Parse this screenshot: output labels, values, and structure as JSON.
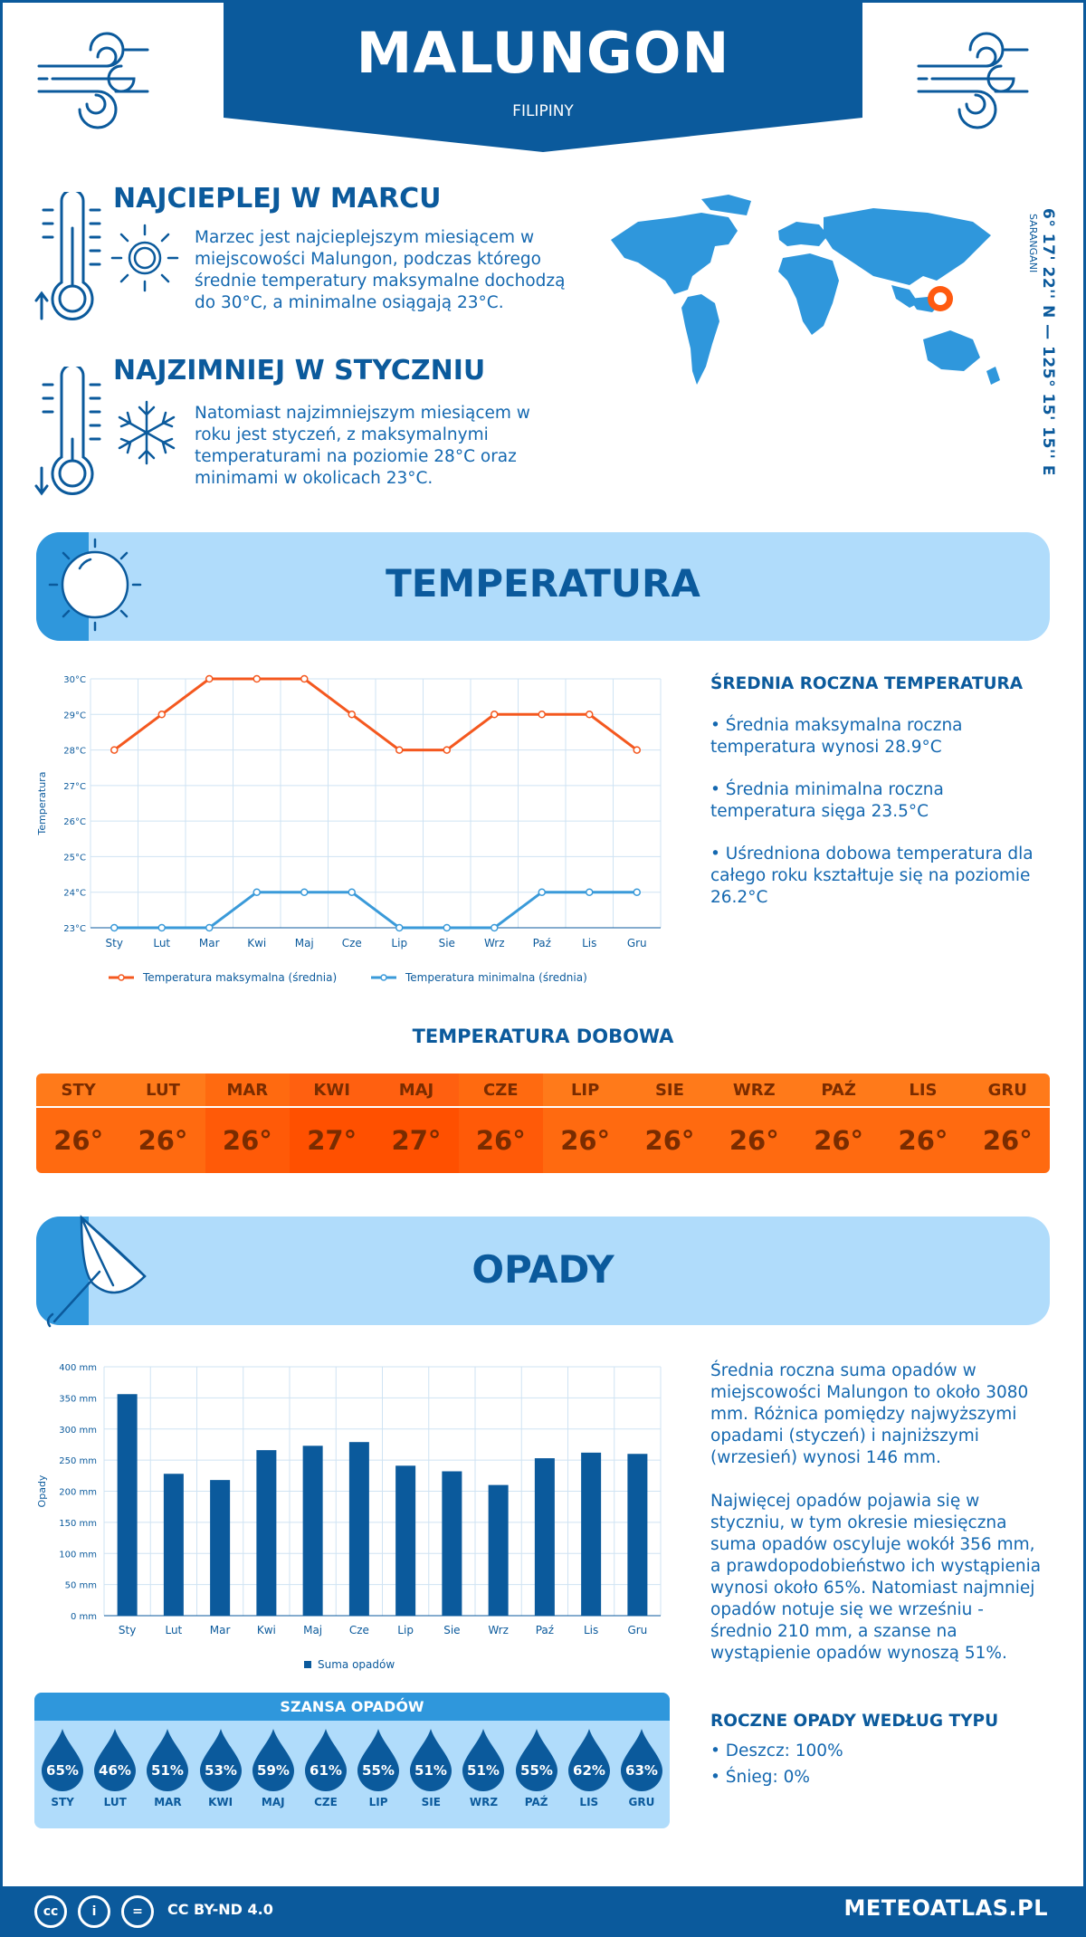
{
  "header": {
    "title": "MALUNGON",
    "subtitle": "FILIPINY"
  },
  "facts": {
    "warmest": {
      "title": "NAJCIEPLEJ W MARCU",
      "text": "Marzec jest najcieplejszym miesiącem w miejscowości Malungon, podczas którego średnie temperatury maksymalne dochodzą do 30°C, a minimalne osiągają 23°C."
    },
    "coldest": {
      "title": "NAJZIMNIEJ W STYCZNIU",
      "text": "Natomiast najzimniejszym miesiącem w roku jest styczeń, z maksymalnymi temperaturami na poziomie 28°C oraz minimami w okolicach 23°C."
    }
  },
  "location": {
    "coords": "6° 17' 22'' N — 125° 15' 15'' E",
    "region": "SARANGANI"
  },
  "temperature_section": {
    "title": "TEMPERATURA",
    "stats_title": "ŚREDNIA ROCZNA TEMPERATURA",
    "stat1": "• Średnia maksymalna roczna temperatura wynosi 28.9°C",
    "stat2": "• Średnia minimalna roczna temperatura sięga 23.5°C",
    "stat3": "• Uśredniona dobowa temperatura dla całego roku kształtuje się na poziomie 26.2°C"
  },
  "daily": {
    "title": "TEMPERATURA DOBOWA",
    "months": [
      "STY",
      "LUT",
      "MAR",
      "KWI",
      "MAJ",
      "CZE",
      "LIP",
      "SIE",
      "WRZ",
      "PAŹ",
      "LIS",
      "GRU"
    ],
    "values": [
      "26°",
      "26°",
      "26°",
      "27°",
      "27°",
      "26°",
      "26°",
      "26°",
      "26°",
      "26°",
      "26°",
      "26°"
    ],
    "header_colors": [
      "#ff7a1a",
      "#ff7a1a",
      "#ff6a10",
      "#ff6010",
      "#ff6010",
      "#ff6a10",
      "#ff7a1a",
      "#ff7a1a",
      "#ff7a1a",
      "#ff7a1a",
      "#ff7a1a",
      "#ff7a1a"
    ],
    "value_colors": [
      "#ff6a10",
      "#ff6a10",
      "#ff5a08",
      "#ff5000",
      "#ff5000",
      "#ff5a08",
      "#ff6a10",
      "#ff6a10",
      "#ff6a10",
      "#ff6a10",
      "#ff6a10",
      "#ff6a10"
    ]
  },
  "precip_section": {
    "title": "OPADY",
    "text1": "Średnia roczna suma opadów w miejscowości Malungon to około 3080 mm. Różnica pomiędzy najwyższymi opadami (styczeń) i najniższymi (wrzesień) wynosi 146 mm.",
    "text2": "Najwięcej opadów pojawia się w styczniu, w tym okresie miesięczna suma opadów oscyluje wokół 356 mm, a prawdopodobieństwo ich wystąpienia wynosi około 65%. Natomiast najmniej opadów notuje się we wrześniu - średnio 210 mm, a szanse na wystąpienie opadów wynoszą 51%.",
    "type_title": "ROCZNE OPADY WEDŁUG TYPU",
    "type_rain": "• Deszcz: 100%",
    "type_snow": "• Śnieg: 0%"
  },
  "chance": {
    "title": "SZANSA OPADÓW",
    "months": [
      "STY",
      "LUT",
      "MAR",
      "KWI",
      "MAJ",
      "CZE",
      "LIP",
      "SIE",
      "WRZ",
      "PAŹ",
      "LIS",
      "GRU"
    ],
    "values": [
      "65%",
      "46%",
      "51%",
      "53%",
      "59%",
      "61%",
      "55%",
      "51%",
      "51%",
      "55%",
      "62%",
      "63%"
    ]
  },
  "chart_data": [
    {
      "type": "line",
      "ylabel": "Temperatura",
      "categories": [
        "Sty",
        "Lut",
        "Mar",
        "Kwi",
        "Maj",
        "Cze",
        "Lip",
        "Sie",
        "Wrz",
        "Paź",
        "Lis",
        "Gru"
      ],
      "yticks": [
        "23°C",
        "24°C",
        "25°C",
        "26°C",
        "27°C",
        "28°C",
        "29°C",
        "30°C"
      ],
      "ylim": [
        23,
        30
      ],
      "series": [
        {
          "name": "Temperatura maksymalna (średnia)",
          "color": "#f4581f",
          "values": [
            28,
            29,
            30,
            30,
            30,
            29,
            28,
            28,
            29,
            29,
            29,
            28
          ]
        },
        {
          "name": "Temperatura minimalna (średnia)",
          "color": "#3a9ad9",
          "values": [
            23,
            23,
            23,
            24,
            24,
            24,
            23,
            23,
            23,
            24,
            24,
            24
          ]
        }
      ],
      "grid": true,
      "legend": "bottom"
    },
    {
      "type": "bar",
      "ylabel": "Opady",
      "categories": [
        "Sty",
        "Lut",
        "Mar",
        "Kwi",
        "Maj",
        "Cze",
        "Lip",
        "Sie",
        "Wrz",
        "Paź",
        "Lis",
        "Gru"
      ],
      "yticks": [
        "0 mm",
        "50 mm",
        "100 mm",
        "150 mm",
        "200 mm",
        "250 mm",
        "300 mm",
        "350 mm",
        "400 mm"
      ],
      "ylim": [
        0,
        400
      ],
      "series": [
        {
          "name": "Suma opadów",
          "color": "#0b5a9c",
          "values": [
            356,
            228,
            218,
            266,
            273,
            279,
            241,
            232,
            210,
            253,
            262,
            260
          ]
        }
      ],
      "grid": true,
      "legend": "bottom"
    }
  ],
  "footer": {
    "license": "CC BY-ND 4.0",
    "site": "METEOATLAS.PL",
    "icon1": "cc",
    "icon2": "i",
    "icon3": "="
  },
  "colors": {
    "primary": "#0b5a9c",
    "accent": "#2f97dc",
    "light": "#b0dcfb",
    "orange": "#ff6a10"
  }
}
